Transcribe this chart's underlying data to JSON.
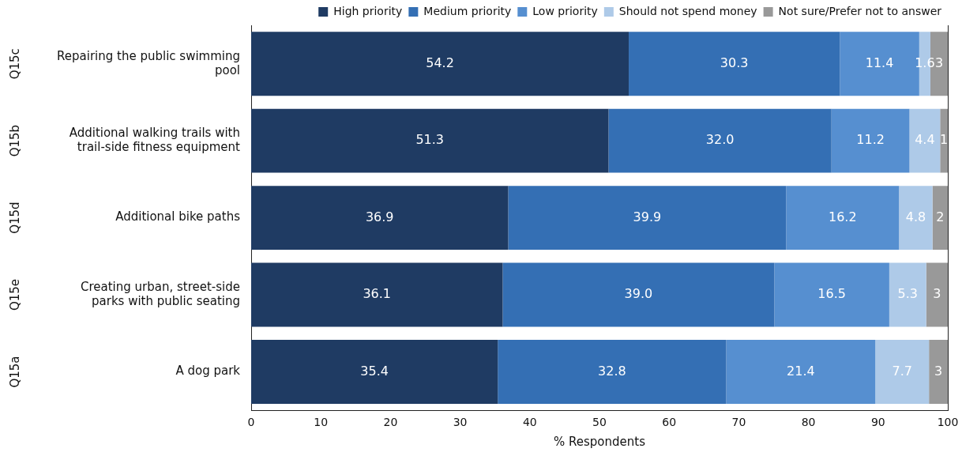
{
  "chart_data": {
    "type": "bar",
    "orientation": "horizontal",
    "stacked": true,
    "xlabel": "% Respondents",
    "categories": [
      "Repairing the public swimming pool",
      "Additional walking trails with trail-side fitness equipment",
      "Additional bike paths",
      "Creating urban, street-side parks with public seating",
      "A dog park"
    ],
    "series": [
      {
        "name": "High priority",
        "color": "#1f3b63",
        "values": [
          54.2,
          51.3,
          36.9,
          36.1,
          35.4
        ],
        "value_labels": [
          "54.2",
          "51.3",
          "36.9",
          "36.1",
          "35.4"
        ]
      },
      {
        "name": "Medium priority",
        "color": "#346fb4",
        "values": [
          30.3,
          32.0,
          39.9,
          39.0,
          32.8
        ],
        "value_labels": [
          "30.3",
          "32.0",
          "39.9",
          "39.0",
          "32.8"
        ]
      },
      {
        "name": "Low priority",
        "color": "#568fd0",
        "values": [
          11.4,
          11.2,
          16.2,
          16.5,
          21.4
        ],
        "value_labels": [
          "11.4",
          "11.2",
          "16.2",
          "16.5",
          "21.4"
        ]
      },
      {
        "name": "Should not spend money",
        "color": "#aecae8",
        "values": [
          1.6,
          4.4,
          4.8,
          5.3,
          7.7
        ],
        "value_labels": [
          "1.6",
          "4.4",
          "4.8",
          "5.3",
          "7.7"
        ]
      },
      {
        "name": "Not sure/Prefer not to answer",
        "color": "#999999",
        "values": [
          2.5,
          1.1,
          2.2,
          3.1,
          2.7
        ],
        "value_labels": [
          "3",
          "1",
          "2",
          "3",
          "3"
        ]
      }
    ],
    "xlim": [
      0,
      100
    ],
    "xticks": [
      0,
      10,
      20,
      30,
      40,
      50,
      60,
      70,
      80,
      90,
      100
    ],
    "grid": false,
    "legend": "top",
    "annotations": [
      "Q15c",
      "Q15b",
      "Q15d",
      "Q15e",
      "Q15a"
    ]
  }
}
